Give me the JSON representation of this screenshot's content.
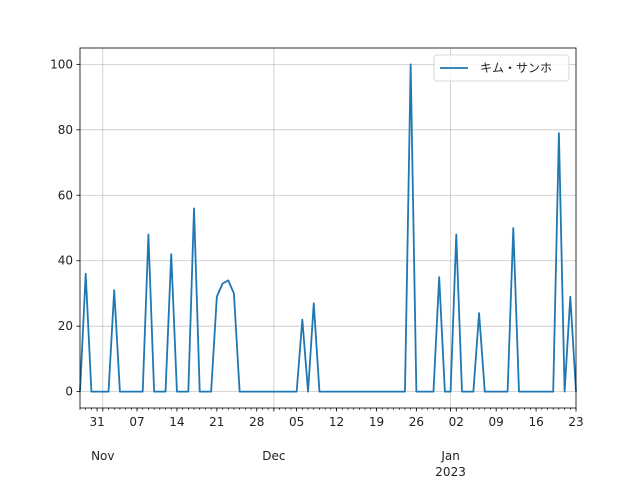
{
  "chart_data": {
    "type": "line",
    "grid": true,
    "legend_position": "top-right",
    "series": [
      {
        "name": "キム・サンホ",
        "color": "#1f77b4",
        "points": [
          [
            "2022-10-28",
            0
          ],
          [
            "2022-10-29",
            36
          ],
          [
            "2022-10-30",
            0
          ],
          [
            "2022-10-31",
            0
          ],
          [
            "2022-11-01",
            0
          ],
          [
            "2022-11-02",
            0
          ],
          [
            "2022-11-03",
            31
          ],
          [
            "2022-11-04",
            0
          ],
          [
            "2022-11-05",
            0
          ],
          [
            "2022-11-06",
            0
          ],
          [
            "2022-11-07",
            0
          ],
          [
            "2022-11-08",
            0
          ],
          [
            "2022-11-09",
            48
          ],
          [
            "2022-11-10",
            0
          ],
          [
            "2022-11-11",
            0
          ],
          [
            "2022-11-12",
            0
          ],
          [
            "2022-11-13",
            42
          ],
          [
            "2022-11-14",
            0
          ],
          [
            "2022-11-15",
            0
          ],
          [
            "2022-11-16",
            0
          ],
          [
            "2022-11-17",
            56
          ],
          [
            "2022-11-18",
            0
          ],
          [
            "2022-11-19",
            0
          ],
          [
            "2022-11-20",
            0
          ],
          [
            "2022-11-21",
            29
          ],
          [
            "2022-11-22",
            33
          ],
          [
            "2022-11-23",
            34
          ],
          [
            "2022-11-24",
            30
          ],
          [
            "2022-11-25",
            0
          ],
          [
            "2022-11-26",
            0
          ],
          [
            "2022-11-27",
            0
          ],
          [
            "2022-11-28",
            0
          ],
          [
            "2022-11-29",
            0
          ],
          [
            "2022-11-30",
            0
          ],
          [
            "2022-12-01",
            0
          ],
          [
            "2022-12-02",
            0
          ],
          [
            "2022-12-03",
            0
          ],
          [
            "2022-12-04",
            0
          ],
          [
            "2022-12-05",
            0
          ],
          [
            "2022-12-06",
            22
          ],
          [
            "2022-12-07",
            0
          ],
          [
            "2022-12-08",
            27
          ],
          [
            "2022-12-09",
            0
          ],
          [
            "2022-12-10",
            0
          ],
          [
            "2022-12-11",
            0
          ],
          [
            "2022-12-12",
            0
          ],
          [
            "2022-12-13",
            0
          ],
          [
            "2022-12-14",
            0
          ],
          [
            "2022-12-15",
            0
          ],
          [
            "2022-12-16",
            0
          ],
          [
            "2022-12-17",
            0
          ],
          [
            "2022-12-18",
            0
          ],
          [
            "2022-12-19",
            0
          ],
          [
            "2022-12-20",
            0
          ],
          [
            "2022-12-21",
            0
          ],
          [
            "2022-12-22",
            0
          ],
          [
            "2022-12-23",
            0
          ],
          [
            "2022-12-24",
            0
          ],
          [
            "2022-12-25",
            100
          ],
          [
            "2022-12-26",
            0
          ],
          [
            "2022-12-27",
            0
          ],
          [
            "2022-12-28",
            0
          ],
          [
            "2022-12-29",
            0
          ],
          [
            "2022-12-30",
            35
          ],
          [
            "2022-12-31",
            0
          ],
          [
            "2023-01-01",
            0
          ],
          [
            "2023-01-02",
            48
          ],
          [
            "2023-01-03",
            0
          ],
          [
            "2023-01-04",
            0
          ],
          [
            "2023-01-05",
            0
          ],
          [
            "2023-01-06",
            24
          ],
          [
            "2023-01-07",
            0
          ],
          [
            "2023-01-08",
            0
          ],
          [
            "2023-01-09",
            0
          ],
          [
            "2023-01-10",
            0
          ],
          [
            "2023-01-11",
            0
          ],
          [
            "2023-01-12",
            50
          ],
          [
            "2023-01-13",
            0
          ],
          [
            "2023-01-14",
            0
          ],
          [
            "2023-01-15",
            0
          ],
          [
            "2023-01-16",
            0
          ],
          [
            "2023-01-17",
            0
          ],
          [
            "2023-01-18",
            0
          ],
          [
            "2023-01-19",
            0
          ],
          [
            "2023-01-20",
            79
          ],
          [
            "2023-01-21",
            0
          ],
          [
            "2023-01-22",
            29
          ],
          [
            "2023-01-23",
            0
          ]
        ]
      }
    ],
    "x_axis": {
      "type": "date",
      "xlim": [
        "2022-10-28",
        "2023-01-23"
      ],
      "ticks": [
        {
          "date": "2022-10-31",
          "label": "31"
        },
        {
          "date": "2022-11-07",
          "label": "07"
        },
        {
          "date": "2022-11-14",
          "label": "14"
        },
        {
          "date": "2022-11-21",
          "label": "21"
        },
        {
          "date": "2022-11-28",
          "label": "28"
        },
        {
          "date": "2022-12-05",
          "label": "05"
        },
        {
          "date": "2022-12-12",
          "label": "12"
        },
        {
          "date": "2022-12-19",
          "label": "19"
        },
        {
          "date": "2022-12-26",
          "label": "26"
        },
        {
          "date": "2023-01-02",
          "label": "02"
        },
        {
          "date": "2023-01-09",
          "label": "09"
        },
        {
          "date": "2023-01-16",
          "label": "16"
        },
        {
          "date": "2023-01-23",
          "label": "23"
        }
      ],
      "major_ticks": [
        {
          "date": "2022-11-01",
          "label": "Nov"
        },
        {
          "date": "2022-12-01",
          "label": "Dec"
        },
        {
          "date": "2023-01-01",
          "label": "Jan"
        }
      ],
      "year_label": {
        "date": "2023-01-01",
        "label": "2023"
      },
      "minor_tick_interval": "day"
    },
    "y_axis": {
      "ylim": [
        -5,
        105
      ],
      "ticks": [
        0,
        20,
        40,
        60,
        80,
        100
      ]
    }
  }
}
